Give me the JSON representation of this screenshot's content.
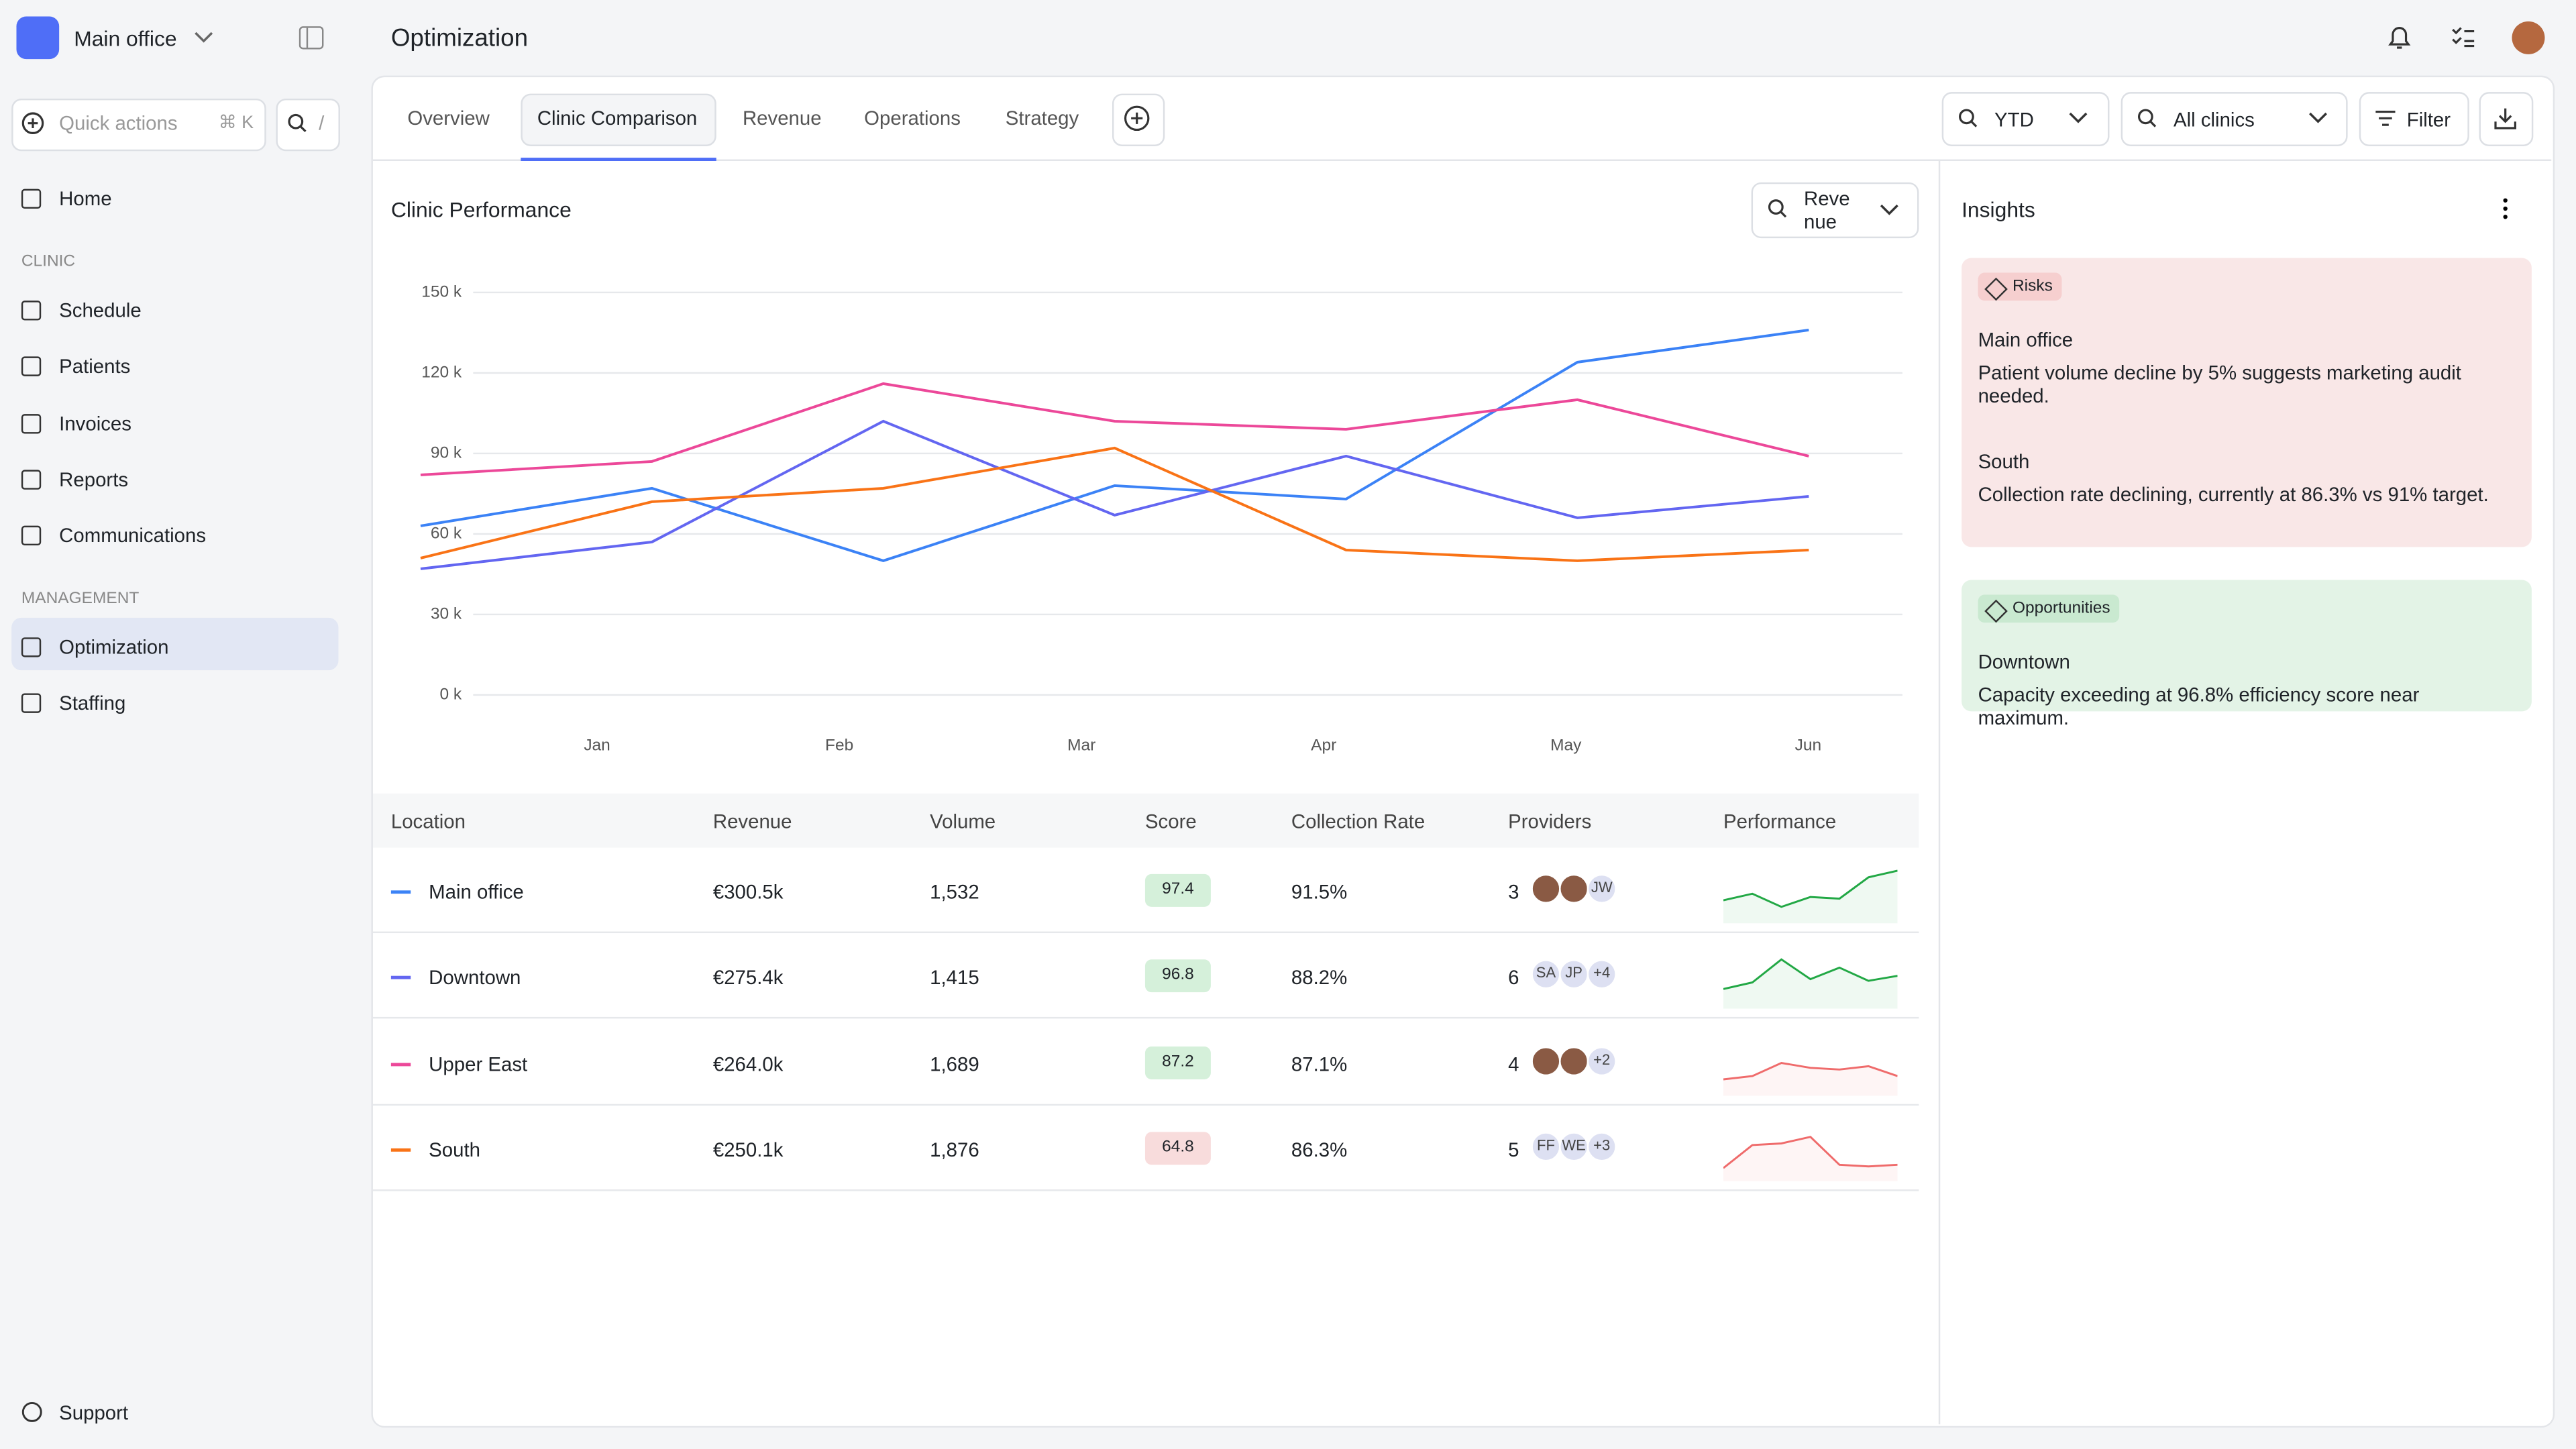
{
  "sidebar": {
    "workspace": "Main office",
    "quick_actions": "Quick actions",
    "shortcut": "⌘ K",
    "search_shortcut": "/",
    "home": "Home",
    "sections": [
      {
        "label": "CLINIC",
        "items": [
          "Schedule",
          "Patients",
          "Invoices",
          "Reports",
          "Communications"
        ]
      },
      {
        "label": "MANAGEMENT",
        "items": [
          "Optimization",
          "Staffing"
        ]
      }
    ],
    "active": "Optimization",
    "support": "Support"
  },
  "header": {
    "title": "Optimization"
  },
  "tabs": {
    "items": [
      "Overview",
      "Clinic Comparison",
      "Revenue",
      "Operations",
      "Strategy"
    ],
    "active": "Clinic Comparison"
  },
  "filters": {
    "period": "YTD",
    "clinics": "All clinics",
    "filter": "Filter"
  },
  "chart": {
    "type": "line",
    "title": "Clinic Performance",
    "metric": "Revenue",
    "categories": [
      null,
      "Jan",
      "Feb",
      "Mar",
      "Apr",
      "May",
      "Jun"
    ],
    "ylim": [
      0,
      150
    ],
    "yticks": [
      {
        "value": 0,
        "label": "0 k"
      },
      {
        "value": 30,
        "label": "30 k"
      },
      {
        "value": 60,
        "label": "60 k"
      },
      {
        "value": 90,
        "label": "90 k"
      },
      {
        "value": 120,
        "label": "120 k"
      },
      {
        "value": 150,
        "label": "150 k"
      }
    ],
    "grid": true,
    "series": [
      {
        "name": "Main office",
        "color": "#3b82f6",
        "values": [
          63,
          77,
          50,
          78,
          73,
          124,
          136
        ]
      },
      {
        "name": "Downtown",
        "color": "#6366f1",
        "values": [
          47,
          57,
          102,
          67,
          89,
          66,
          74
        ]
      },
      {
        "name": "Upper East",
        "color": "#ec4899",
        "values": [
          82,
          87,
          116,
          102,
          99,
          110,
          89
        ]
      },
      {
        "name": "South",
        "color": "#f97316",
        "values": [
          51,
          72,
          77,
          92,
          54,
          50,
          54
        ]
      }
    ]
  },
  "table": {
    "columns": [
      "Location",
      "Revenue",
      "Volume",
      "Score",
      "Collection Rate",
      "Providers",
      "Performance"
    ],
    "rows": [
      {
        "location": "Main office",
        "revenue": "€300.5k",
        "volume": "1,532",
        "score": "97.4",
        "score_color": "#d5f0da",
        "collection": "91.5%",
        "providers": "3",
        "avatars": [
          null,
          null,
          "JW"
        ],
        "spark": [
          8,
          12,
          4,
          10,
          9,
          22,
          26
        ],
        "spark_color": "#22a845"
      },
      {
        "location": "Downtown",
        "revenue": "€275.4k",
        "volume": "1,415",
        "score": "96.8",
        "score_color": "#d5f0da",
        "collection": "88.2%",
        "providers": "6",
        "avatars": [
          "SA",
          "JP",
          "+4"
        ],
        "spark": [
          6,
          10,
          24,
          12,
          19,
          11,
          14
        ],
        "spark_color": "#22a845"
      },
      {
        "location": "Upper East",
        "revenue": "€264.0k",
        "volume": "1,689",
        "score": "87.2",
        "score_color": "#d5f0da",
        "collection": "87.1%",
        "providers": "4",
        "avatars": [
          null,
          null,
          "+2"
        ],
        "spark": [
          4,
          6,
          14,
          11,
          10,
          12,
          6
        ],
        "spark_color": "#ef6b6b"
      },
      {
        "location": "South",
        "revenue": "€250.1k",
        "volume": "1,876",
        "score": "64.8",
        "score_color": "#f8dcdc",
        "collection": "86.3%",
        "providers": "5",
        "avatars": [
          "FF",
          "WE",
          "+3"
        ],
        "spark": [
          2,
          16,
          17,
          21,
          4,
          3,
          4
        ],
        "spark_color": "#ef6b6b"
      }
    ]
  },
  "insights": {
    "title": "Insights",
    "cards": [
      {
        "tag": "Risks",
        "color": "#f9e7e7",
        "tag_color": "#f6cfcf",
        "items": [
          {
            "title": "Main office",
            "text": "Patient volume decline by 5% suggests marketing audit needed."
          },
          {
            "title": "South",
            "text": "Collection rate declining, currently at 86.3% vs 91% target."
          }
        ]
      },
      {
        "tag": "Opportunities",
        "color": "#e3f3e6",
        "tag_color": "#c9e9d0",
        "items": [
          {
            "title": "Downtown",
            "text": "Capacity exceeding at 96.8% efficiency score near maximum."
          }
        ]
      }
    ]
  }
}
